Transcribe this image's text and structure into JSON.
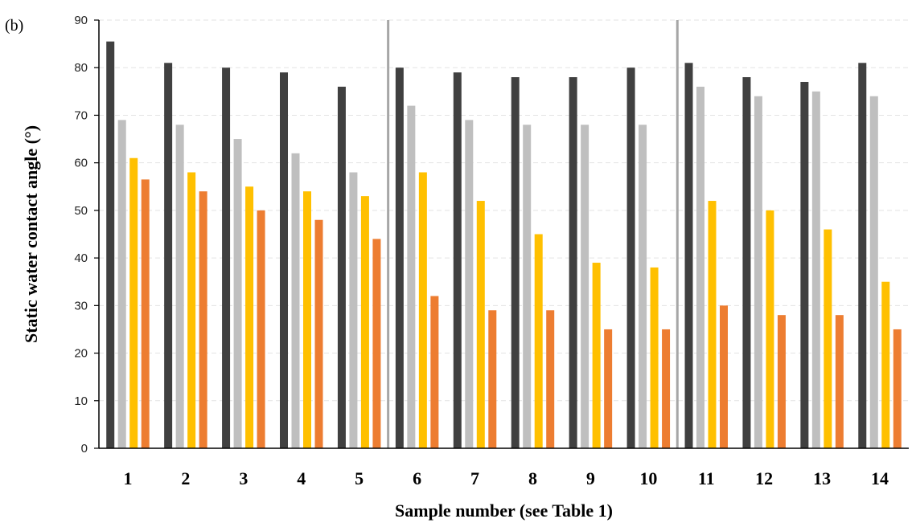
{
  "panel_label": "(b)",
  "colors": {
    "series": [
      "#404040",
      "#bfbfbf",
      "#ffc000",
      "#ed7d31"
    ],
    "grid": "#e3e3e3",
    "axis": "#000000",
    "divider": "#a6a6a6"
  },
  "chart_data": {
    "type": "bar",
    "title": "",
    "xlabel": "Sample number (see Table 1)",
    "ylabel": "Static water contact angle (°)",
    "ylim": [
      0,
      90
    ],
    "yticks": [
      0,
      10,
      20,
      30,
      40,
      50,
      60,
      70,
      80,
      90
    ],
    "grid": "horizontal dashed",
    "legend": "none",
    "categories": [
      "1",
      "2",
      "3",
      "4",
      "5",
      "6",
      "7",
      "8",
      "9",
      "10",
      "11",
      "12",
      "13",
      "14"
    ],
    "group_dividers_after": [
      "5",
      "10"
    ],
    "series": [
      {
        "values": [
          85.5,
          81,
          80,
          79,
          76,
          80,
          79,
          78,
          78,
          80,
          81,
          78,
          77,
          81
        ]
      },
      {
        "values": [
          69,
          68,
          65,
          62,
          58,
          72,
          69,
          68,
          68,
          68,
          76,
          74,
          75,
          74
        ]
      },
      {
        "values": [
          61,
          58,
          55,
          54,
          53,
          58,
          52,
          45,
          39,
          38,
          52,
          50,
          46,
          35
        ]
      },
      {
        "values": [
          56.5,
          54,
          50,
          48,
          44,
          32,
          29,
          29,
          25,
          25,
          30,
          28,
          28,
          25
        ]
      }
    ]
  }
}
